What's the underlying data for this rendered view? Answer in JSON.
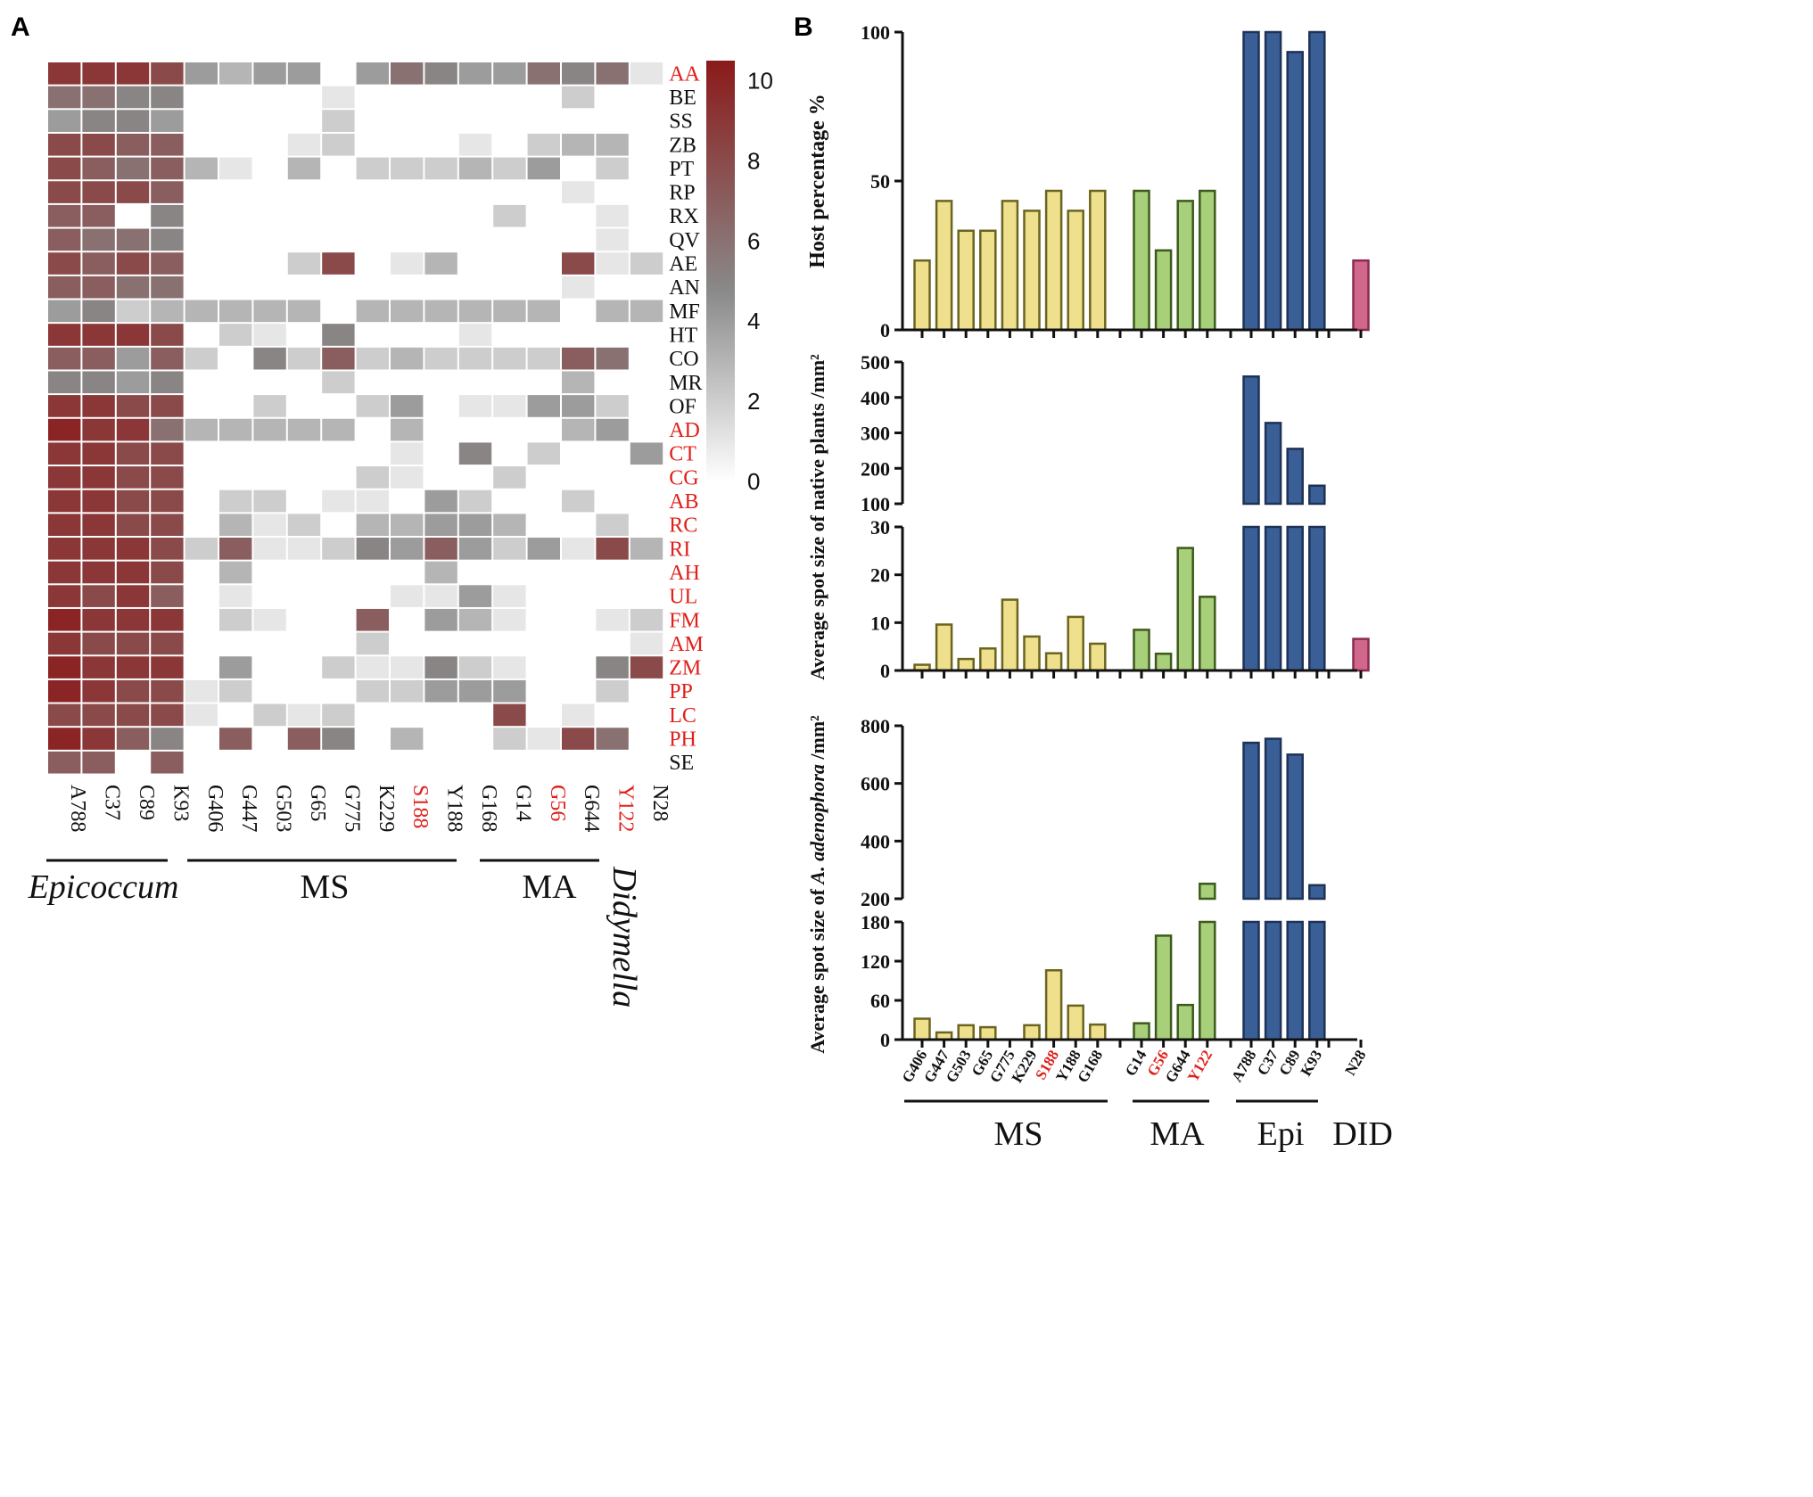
{
  "panels": {
    "a": "A",
    "b": "B"
  },
  "colors": {
    "heat_high": "#8b1a1a",
    "heat_mid": "#8a8a8a",
    "heat_low": "#ffffff",
    "ms": "#eee08c",
    "ma": "#a8cf7a",
    "epi": "#3a5f96",
    "did": "#d2678c",
    "ms_edge": "#6b6420",
    "ma_edge": "#3c5a1c",
    "epi_edge": "#1e3258",
    "did_edge": "#8a2c52",
    "red_label": "#e0201b"
  },
  "chart_data": [
    {
      "type": "heatmap",
      "panel": "A",
      "rows": [
        "AA",
        "BE",
        "SS",
        "ZB",
        "PT",
        "RP",
        "RX",
        "QV",
        "AE",
        "AN",
        "MF",
        "HT",
        "CO",
        "MR",
        "OF",
        "AD",
        "CT",
        "CG",
        "AB",
        "RC",
        "RI",
        "AH",
        "UL",
        "FM",
        "AM",
        "ZM",
        "PP",
        "LC",
        "PH",
        "SE"
      ],
      "red_rows": [
        "AA",
        "AD",
        "CT",
        "CG",
        "AB",
        "RC",
        "RI",
        "AH",
        "UL",
        "FM",
        "AM",
        "ZM",
        "PP",
        "LC",
        "PH"
      ],
      "columns": [
        "A788",
        "C37",
        "C89",
        "K93",
        "G406",
        "G447",
        "G503",
        "G65",
        "G775",
        "K229",
        "S188",
        "Y188",
        "G168",
        "G14",
        "G56",
        "G644",
        "Y122",
        "N28"
      ],
      "red_columns": [
        "S188",
        "G56",
        "Y122"
      ],
      "groups": [
        {
          "label": "Epicoccum",
          "from": 0,
          "to": 3
        },
        {
          "label": "MS",
          "from": 4,
          "to": 12
        },
        {
          "label": "MA",
          "from": 13,
          "to": 16
        },
        {
          "label": "Didymella",
          "from": 17,
          "to": 17
        }
      ],
      "colorbar": {
        "min": 0,
        "max": 10.5,
        "ticks": [
          0,
          2,
          4,
          6,
          8,
          10
        ]
      },
      "values": [
        [
          9,
          9,
          9,
          8,
          4,
          3,
          4,
          4,
          0,
          4,
          6,
          5,
          4,
          4,
          6,
          5,
          6,
          1
        ],
        [
          6,
          6,
          5,
          5,
          0,
          0,
          0,
          0,
          1,
          0,
          0,
          0,
          0,
          0,
          0,
          2,
          0,
          0
        ],
        [
          4,
          5,
          5,
          4,
          0,
          0,
          0,
          0,
          2,
          0,
          0,
          0,
          0,
          0,
          0,
          0,
          0,
          0
        ],
        [
          8,
          8,
          7,
          7,
          0,
          0,
          0,
          1,
          2,
          0,
          0,
          0,
          1,
          0,
          2,
          3,
          3,
          0
        ],
        [
          8,
          7,
          6,
          7,
          3,
          1,
          0,
          3,
          0,
          2,
          2,
          2,
          3,
          2,
          4,
          0,
          2,
          0
        ],
        [
          8,
          8,
          8,
          7,
          0,
          0,
          0,
          0,
          0,
          0,
          0,
          0,
          0,
          0,
          0,
          1,
          0,
          0
        ],
        [
          7,
          7,
          0,
          5,
          0,
          0,
          0,
          0,
          0,
          0,
          0,
          0,
          0,
          2,
          0,
          0,
          1,
          0
        ],
        [
          7,
          6,
          6,
          5,
          0,
          0,
          0,
          0,
          0,
          0,
          0,
          0,
          0,
          0,
          0,
          0,
          1,
          0
        ],
        [
          8,
          7,
          8,
          7,
          0,
          0,
          0,
          2,
          8,
          0,
          1,
          3,
          0,
          0,
          0,
          8,
          1,
          2
        ],
        [
          7,
          7,
          6,
          6,
          0,
          0,
          0,
          0,
          0,
          0,
          0,
          0,
          0,
          0,
          0,
          1,
          0,
          0
        ],
        [
          4,
          5,
          2,
          3,
          3,
          3,
          3,
          3,
          0,
          3,
          3,
          3,
          3,
          3,
          3,
          0,
          3,
          3
        ],
        [
          9,
          9,
          9,
          8,
          0,
          2,
          1,
          0,
          5,
          0,
          0,
          0,
          1,
          0,
          0,
          0,
          0,
          0
        ],
        [
          7,
          7,
          4,
          7,
          2,
          0,
          5,
          2,
          7,
          2,
          3,
          2,
          2,
          2,
          2,
          7,
          6,
          0
        ],
        [
          5,
          5,
          4,
          5,
          0,
          0,
          0,
          0,
          2,
          0,
          0,
          0,
          0,
          0,
          0,
          3,
          0,
          0
        ],
        [
          9,
          9,
          8,
          8,
          0,
          0,
          2,
          0,
          0,
          2,
          4,
          0,
          1,
          1,
          4,
          4,
          2,
          0
        ],
        [
          10,
          9,
          9,
          6,
          3,
          3,
          3,
          3,
          3,
          0,
          3,
          0,
          0,
          0,
          0,
          3,
          4,
          0
        ],
        [
          9,
          9,
          8,
          8,
          0,
          0,
          0,
          0,
          0,
          0,
          1,
          0,
          5,
          0,
          2,
          0,
          0,
          4
        ],
        [
          9,
          9,
          8,
          8,
          0,
          0,
          0,
          0,
          0,
          2,
          1,
          0,
          0,
          2,
          0,
          0,
          0,
          0
        ],
        [
          9,
          9,
          8,
          8,
          0,
          2,
          2,
          0,
          1,
          1,
          0,
          4,
          2,
          0,
          0,
          2,
          0,
          0
        ],
        [
          9,
          9,
          8,
          8,
          0,
          3,
          1,
          2,
          0,
          3,
          3,
          4,
          4,
          3,
          0,
          0,
          2,
          0
        ],
        [
          9,
          9,
          9,
          8,
          2,
          7,
          1,
          1,
          2,
          5,
          4,
          7,
          4,
          2,
          4,
          1,
          8,
          3
        ],
        [
          9,
          9,
          9,
          8,
          0,
          3,
          0,
          0,
          0,
          0,
          0,
          3,
          0,
          0,
          0,
          0,
          0,
          0
        ],
        [
          9,
          8,
          9,
          7,
          0,
          1,
          0,
          0,
          0,
          0,
          1,
          1,
          4,
          1,
          0,
          0,
          0,
          0
        ],
        [
          10,
          9,
          9,
          9,
          0,
          2,
          1,
          0,
          0,
          7,
          0,
          4,
          3,
          1,
          0,
          0,
          1,
          2
        ],
        [
          9,
          8,
          8,
          8,
          0,
          0,
          0,
          0,
          0,
          2,
          0,
          0,
          0,
          0,
          0,
          0,
          0,
          1
        ],
        [
          10,
          9,
          9,
          9,
          0,
          4,
          0,
          0,
          2,
          1,
          1,
          5,
          2,
          1,
          0,
          0,
          5,
          8
        ],
        [
          10,
          9,
          8,
          8,
          1,
          2,
          0,
          0,
          0,
          2,
          2,
          4,
          4,
          4,
          0,
          0,
          2,
          0
        ],
        [
          8,
          8,
          8,
          8,
          1,
          0,
          2,
          1,
          2,
          0,
          0,
          0,
          0,
          8,
          0,
          1,
          0,
          0
        ],
        [
          10,
          9,
          7,
          5,
          0,
          7,
          0,
          7,
          5,
          0,
          3,
          0,
          0,
          2,
          1,
          8,
          6,
          0
        ],
        [
          7,
          7,
          0,
          7,
          0,
          0,
          0,
          0,
          0,
          0,
          0,
          0,
          0,
          0,
          0,
          0,
          0,
          0
        ]
      ]
    },
    {
      "type": "bar",
      "panel": "B-top",
      "ylabel": "Host percentage %",
      "ylim": [
        0,
        100
      ],
      "yticks": [
        0,
        50,
        100
      ],
      "series": [
        {
          "name": "MS",
          "categories": [
            "G406",
            "G447",
            "G503",
            "G65",
            "G775",
            "K229",
            "S188",
            "Y188",
            "G168"
          ],
          "values": [
            23.3,
            43.3,
            33.3,
            33.3,
            43.3,
            40,
            46.7,
            40,
            46.7
          ]
        },
        {
          "name": "MA",
          "categories": [
            "G14",
            "G56",
            "G644",
            "Y122"
          ],
          "values": [
            46.7,
            26.7,
            43.3,
            46.7
          ]
        },
        {
          "name": "Epi",
          "categories": [
            "A788",
            "C37",
            "C89",
            "K93"
          ],
          "values": [
            100,
            100,
            93.3,
            100
          ]
        },
        {
          "name": "DID",
          "categories": [
            "N28"
          ],
          "values": [
            23.3
          ]
        }
      ]
    },
    {
      "type": "bar",
      "panel": "B-middle",
      "ylabel": "Average spot size of native plants /mm²",
      "broken_axis": {
        "lower": [
          0,
          30
        ],
        "upper": [
          100,
          500
        ]
      },
      "yticks_lower": [
        0,
        10,
        20,
        30
      ],
      "yticks_upper": [
        100,
        200,
        300,
        400,
        500
      ],
      "series": [
        {
          "name": "MS",
          "categories": [
            "G406",
            "G447",
            "G503",
            "G65",
            "G775",
            "K229",
            "S188",
            "Y188",
            "G168"
          ],
          "values": [
            1.2,
            9.6,
            2.4,
            4.6,
            14.8,
            7.1,
            3.6,
            11.2,
            5.6
          ]
        },
        {
          "name": "MA",
          "categories": [
            "G14",
            "G56",
            "G644",
            "Y122"
          ],
          "values": [
            8.5,
            3.5,
            25.6,
            15.4
          ]
        },
        {
          "name": "Epi",
          "categories": [
            "A788",
            "C37",
            "C89",
            "K93"
          ],
          "values": [
            459,
            328,
            255,
            151
          ]
        },
        {
          "name": "DID",
          "categories": [
            "N28"
          ],
          "values": [
            6.6
          ]
        }
      ]
    },
    {
      "type": "bar",
      "panel": "B-bottom",
      "ylabel": "Average spot size of A. adenophora /mm²",
      "ylabel_parts": [
        "Average spot size of ",
        "A. adenophora",
        " /mm²"
      ],
      "broken_axis": {
        "lower": [
          0,
          180
        ],
        "upper": [
          200,
          800
        ]
      },
      "yticks_lower": [
        0,
        60,
        120,
        180
      ],
      "yticks_upper": [
        200,
        400,
        600,
        800
      ],
      "series": [
        {
          "name": "MS",
          "categories": [
            "G406",
            "G447",
            "G503",
            "G65",
            "G775",
            "K229",
            "S188",
            "Y188",
            "G168"
          ],
          "values": [
            32,
            11,
            22,
            19,
            0,
            22,
            106,
            52,
            23
          ]
        },
        {
          "name": "MA",
          "categories": [
            "G14",
            "G56",
            "G644",
            "Y122"
          ],
          "values": [
            25,
            159,
            53,
            252
          ]
        },
        {
          "name": "Epi",
          "categories": [
            "A788",
            "C37",
            "C89",
            "K93"
          ],
          "values": [
            741,
            755,
            700,
            247
          ]
        },
        {
          "name": "DID",
          "categories": [
            "N28"
          ],
          "values": [
            0
          ]
        }
      ],
      "x_tick_labels": [
        "G406",
        "G447",
        "G503",
        "G65",
        "G775",
        "K229",
        "S188",
        "Y188",
        "G168",
        "G14",
        "G56",
        "G644",
        "Y122",
        "A788",
        "C37",
        "C89",
        "K93",
        "N28"
      ],
      "red_tick_labels": [
        "S188",
        "G56",
        "Y122"
      ],
      "group_labels": [
        "MS",
        "MA",
        "Epi",
        "DID"
      ]
    }
  ]
}
